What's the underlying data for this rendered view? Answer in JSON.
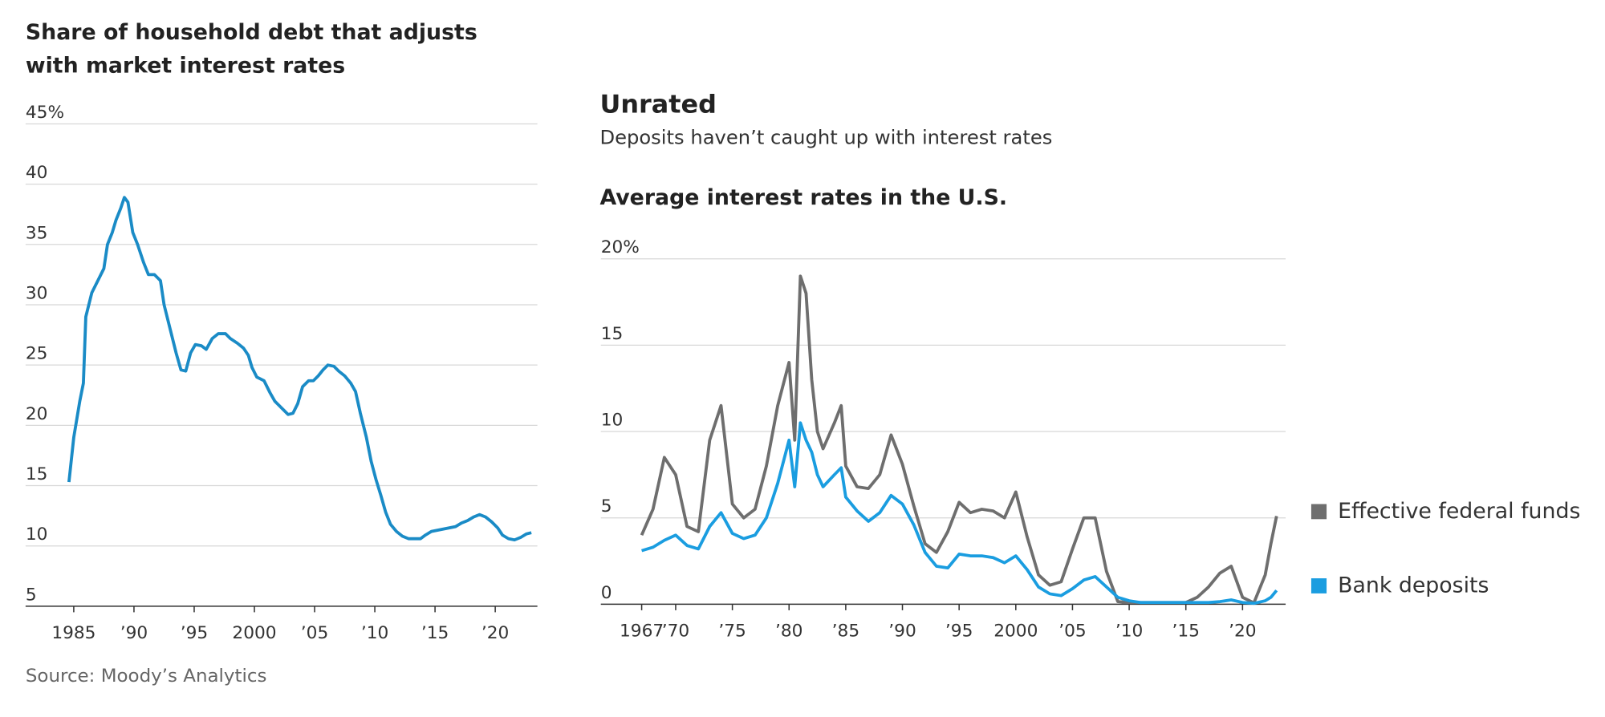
{
  "chart_data": [
    {
      "type": "line",
      "title": "Share of household debt that adjusts with market interest rates",
      "source": "Source: Moody’s Analytics",
      "x": [
        1984.6,
        1985.0,
        1985.5,
        1985.8,
        1986.0,
        1986.5,
        1987.0,
        1987.5,
        1987.8,
        1988.2,
        1988.5,
        1988.9,
        1989.2,
        1989.5,
        1989.9,
        1990.3,
        1990.8,
        1991.2,
        1991.7,
        1992.2,
        1992.5,
        1993.0,
        1993.5,
        1993.9,
        1994.3,
        1994.7,
        1995.1,
        1995.6,
        1996.0,
        1996.5,
        1997.0,
        1997.6,
        1998.0,
        1998.6,
        1999.1,
        1999.5,
        1999.8,
        2000.2,
        2000.8,
        2001.3,
        2001.7,
        2002.2,
        2002.8,
        2003.2,
        2003.6,
        2004.0,
        2004.5,
        2004.9,
        2005.3,
        2005.7,
        2006.1,
        2006.6,
        2007.0,
        2007.5,
        2008.0,
        2008.4,
        2008.8,
        2009.3,
        2009.7,
        2010.1,
        2010.5,
        2010.9,
        2011.3,
        2011.8,
        2012.3,
        2012.8,
        2013.3,
        2013.8,
        2014.2,
        2014.7,
        2015.2,
        2015.7,
        2016.2,
        2016.7,
        2017.2,
        2017.7,
        2018.2,
        2018.7,
        2019.2,
        2019.7,
        2020.2,
        2020.6,
        2021.1,
        2021.6,
        2022.1,
        2022.6,
        2023.0
      ],
      "series": [
        {
          "color": "#1a8bc6",
          "values": [
            15.3,
            19,
            22,
            23.5,
            29,
            31,
            32,
            33,
            35,
            36,
            37,
            38,
            38.9,
            38.5,
            36,
            35,
            33.5,
            32.5,
            32.5,
            32,
            30,
            28,
            26,
            24.6,
            24.5,
            26,
            26.7,
            26.6,
            26.3,
            27.2,
            27.6,
            27.6,
            27.2,
            26.8,
            26.4,
            25.8,
            24.8,
            24,
            23.7,
            22.7,
            22,
            21.5,
            20.9,
            21,
            21.8,
            23.2,
            23.7,
            23.7,
            24.1,
            24.6,
            25,
            24.9,
            24.5,
            24.1,
            23.5,
            22.8,
            21,
            19,
            17,
            15.5,
            14.2,
            12.8,
            11.8,
            11.2,
            10.8,
            10.6,
            10.6,
            10.6,
            10.9,
            11.2,
            11.3,
            11.4,
            11.5,
            11.6,
            11.9,
            12.1,
            12.4,
            12.6,
            12.4,
            12.0,
            11.5,
            10.9,
            10.6,
            10.5,
            10.7,
            11.0,
            11.1
          ]
        }
      ],
      "xlim": [
        1981,
        2023.5
      ],
      "xticks": [
        1985,
        {
          "value": 1990,
          "label": "’90"
        },
        {
          "value": 1995,
          "label": "’95"
        },
        2000,
        {
          "value": 2005,
          "label": "’05"
        },
        {
          "value": 2010,
          "label": "’10"
        },
        {
          "value": 2015,
          "label": "’15"
        },
        {
          "value": 2020,
          "label": "’20"
        }
      ],
      "ylim": [
        5,
        45
      ],
      "yticks": [
        {
          "value": 45,
          "label": "45%"
        },
        40,
        35,
        30,
        25,
        20,
        15,
        10,
        5
      ],
      "grid": true
    },
    {
      "type": "line",
      "heading": "Unrated",
      "subtitle": "Deposits haven’t caught up with interest rates",
      "title": "Average interest rates in the U.S.",
      "x": [
        1967,
        1968,
        1969,
        1970,
        1971,
        1972,
        1973,
        1974,
        1975,
        1976,
        1977,
        1978,
        1979,
        1980,
        1980.5,
        1981,
        1981.5,
        1982,
        1982.5,
        1983,
        1984,
        1984.6,
        1985,
        1986,
        1987,
        1988,
        1989,
        1990,
        1991,
        1992,
        1993,
        1994,
        1995,
        1996,
        1997,
        1998,
        1999,
        2000,
        2001,
        2002,
        2003,
        2004,
        2005,
        2006,
        2007,
        2008,
        2009,
        2010,
        2011,
        2012,
        2013,
        2014,
        2015,
        2016,
        2017,
        2018,
        2019,
        2020,
        2021,
        2022,
        2022.5,
        2023
      ],
      "series": [
        {
          "name": "Effective federal funds",
          "color": "#6e6e6e",
          "values": [
            4.0,
            5.5,
            8.5,
            7.5,
            4.5,
            4.2,
            9.5,
            11.5,
            5.8,
            5.0,
            5.5,
            8.0,
            11.5,
            14,
            9.5,
            19,
            18,
            13,
            10,
            9,
            10.5,
            11.5,
            8,
            6.8,
            6.7,
            7.5,
            9.8,
            8.1,
            5.7,
            3.5,
            3.0,
            4.2,
            5.9,
            5.3,
            5.5,
            5.4,
            5.0,
            6.5,
            3.9,
            1.7,
            1.1,
            1.3,
            3.2,
            5.0,
            5.0,
            1.9,
            0.15,
            0.1,
            0.1,
            0.1,
            0.1,
            0.1,
            0.1,
            0.4,
            1.0,
            1.8,
            2.2,
            0.4,
            0.08,
            1.7,
            3.5,
            5.1
          ]
        },
        {
          "name": "Bank deposits",
          "color": "#1a9de0",
          "values": [
            3.1,
            3.3,
            3.7,
            4.0,
            3.4,
            3.2,
            4.5,
            5.3,
            4.1,
            3.8,
            4.0,
            5.0,
            7.0,
            9.5,
            6.8,
            10.5,
            9.5,
            8.8,
            7.5,
            6.8,
            7.5,
            7.9,
            6.2,
            5.4,
            4.8,
            5.3,
            6.3,
            5.8,
            4.6,
            3.0,
            2.2,
            2.1,
            2.9,
            2.8,
            2.8,
            2.7,
            2.4,
            2.8,
            2.0,
            1.0,
            0.6,
            0.5,
            0.9,
            1.4,
            1.6,
            1.0,
            0.4,
            0.2,
            0.1,
            0.1,
            0.1,
            0.1,
            0.1,
            0.1,
            0.1,
            0.15,
            0.25,
            0.1,
            0.05,
            0.2,
            0.4,
            0.8
          ]
        }
      ],
      "xlim": [
        1963.4,
        2023.8
      ],
      "xticks": [
        1967,
        {
          "value": 1970,
          "label": "’70"
        },
        {
          "value": 1975,
          "label": "’75"
        },
        {
          "value": 1980,
          "label": "’80"
        },
        {
          "value": 1985,
          "label": "’85"
        },
        {
          "value": 1990,
          "label": "’90"
        },
        {
          "value": 1995,
          "label": "’95"
        },
        2000,
        {
          "value": 2005,
          "label": "’05"
        },
        {
          "value": 2010,
          "label": "’10"
        },
        {
          "value": 2015,
          "label": "’15"
        },
        {
          "value": 2020,
          "label": "’20"
        }
      ],
      "ylim": [
        0,
        20
      ],
      "yticks": [
        {
          "value": 20,
          "label": "20%"
        },
        15,
        10,
        5,
        0
      ],
      "grid": true,
      "legend": "right"
    }
  ]
}
